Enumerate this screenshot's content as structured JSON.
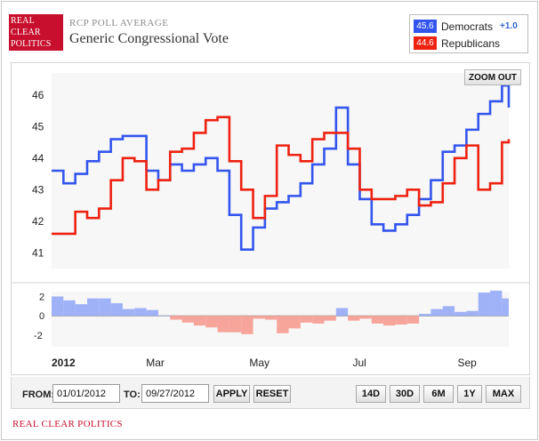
{
  "header": {
    "logo_lines": [
      "REAL",
      "CLEAR",
      "POLITICS"
    ],
    "kicker": "RCP POLL AVERAGE",
    "title": "Generic Congressional Vote"
  },
  "legend": {
    "democrats": {
      "value": "45.6",
      "label": "Democrats",
      "change": "+1.0",
      "color": "#3355ee"
    },
    "republicans": {
      "value": "44.6",
      "label": "Republicans",
      "color": "#ee2211"
    }
  },
  "toolbar": {
    "zoom_out": "ZOOM OUT"
  },
  "controls": {
    "from_label": "FROM:",
    "from_value": "01/01/2012",
    "to_label": "TO:",
    "to_value": "09/27/2012",
    "apply": "APPLY",
    "reset": "RESET",
    "ranges": [
      "14D",
      "30D",
      "6M",
      "1Y",
      "MAX"
    ]
  },
  "footer": {
    "brand": "REAL CLEAR POLITICS"
  },
  "chart_data": {
    "type": "line",
    "x_unit": "date",
    "x_ticks": [
      "2012",
      "Mar",
      "May",
      "Jul",
      "Sep"
    ],
    "ylim": [
      40.5,
      46.7
    ],
    "y_ticks": [
      41,
      42,
      43,
      44,
      45,
      46
    ],
    "diff_ylim": [
      -3.2,
      2.5
    ],
    "diff_ticks": [
      2,
      0,
      -2
    ],
    "grid": false,
    "x": [
      "2012-01-01",
      "2012-01-08",
      "2012-01-15",
      "2012-01-22",
      "2012-01-29",
      "2012-02-05",
      "2012-02-12",
      "2012-02-19",
      "2012-02-26",
      "2012-03-04",
      "2012-03-11",
      "2012-03-18",
      "2012-03-25",
      "2012-04-01",
      "2012-04-08",
      "2012-04-15",
      "2012-04-22",
      "2012-04-29",
      "2012-05-06",
      "2012-05-13",
      "2012-05-20",
      "2012-05-27",
      "2012-06-03",
      "2012-06-10",
      "2012-06-17",
      "2012-06-24",
      "2012-07-01",
      "2012-07-08",
      "2012-07-15",
      "2012-07-22",
      "2012-07-29",
      "2012-08-05",
      "2012-08-12",
      "2012-08-19",
      "2012-08-26",
      "2012-09-02",
      "2012-09-09",
      "2012-09-16",
      "2012-09-23",
      "2012-09-27"
    ],
    "series": [
      {
        "name": "Democrats",
        "color": "#3355ee",
        "values": [
          43.6,
          43.2,
          43.5,
          43.9,
          44.2,
          44.6,
          44.7,
          44.7,
          43.6,
          43.3,
          43.8,
          43.6,
          43.8,
          44.0,
          43.6,
          42.2,
          41.1,
          41.8,
          42.4,
          42.6,
          42.8,
          43.2,
          43.8,
          44.3,
          45.6,
          43.8,
          42.7,
          41.9,
          41.7,
          41.9,
          42.2,
          42.7,
          43.3,
          44.2,
          44.4,
          44.9,
          45.4,
          45.8,
          46.3,
          45.6
        ]
      },
      {
        "name": "Republicans",
        "color": "#ee2211",
        "values": [
          41.6,
          41.6,
          42.3,
          42.1,
          42.4,
          43.3,
          44.0,
          43.9,
          43.0,
          43.3,
          44.2,
          44.3,
          44.8,
          45.2,
          45.3,
          43.9,
          43.0,
          42.1,
          42.8,
          44.4,
          44.1,
          43.9,
          44.6,
          44.8,
          44.8,
          44.3,
          43.0,
          42.7,
          42.7,
          42.8,
          43.0,
          42.5,
          42.6,
          43.2,
          44.0,
          44.4,
          43.0,
          43.2,
          44.5,
          44.6
        ]
      }
    ]
  }
}
